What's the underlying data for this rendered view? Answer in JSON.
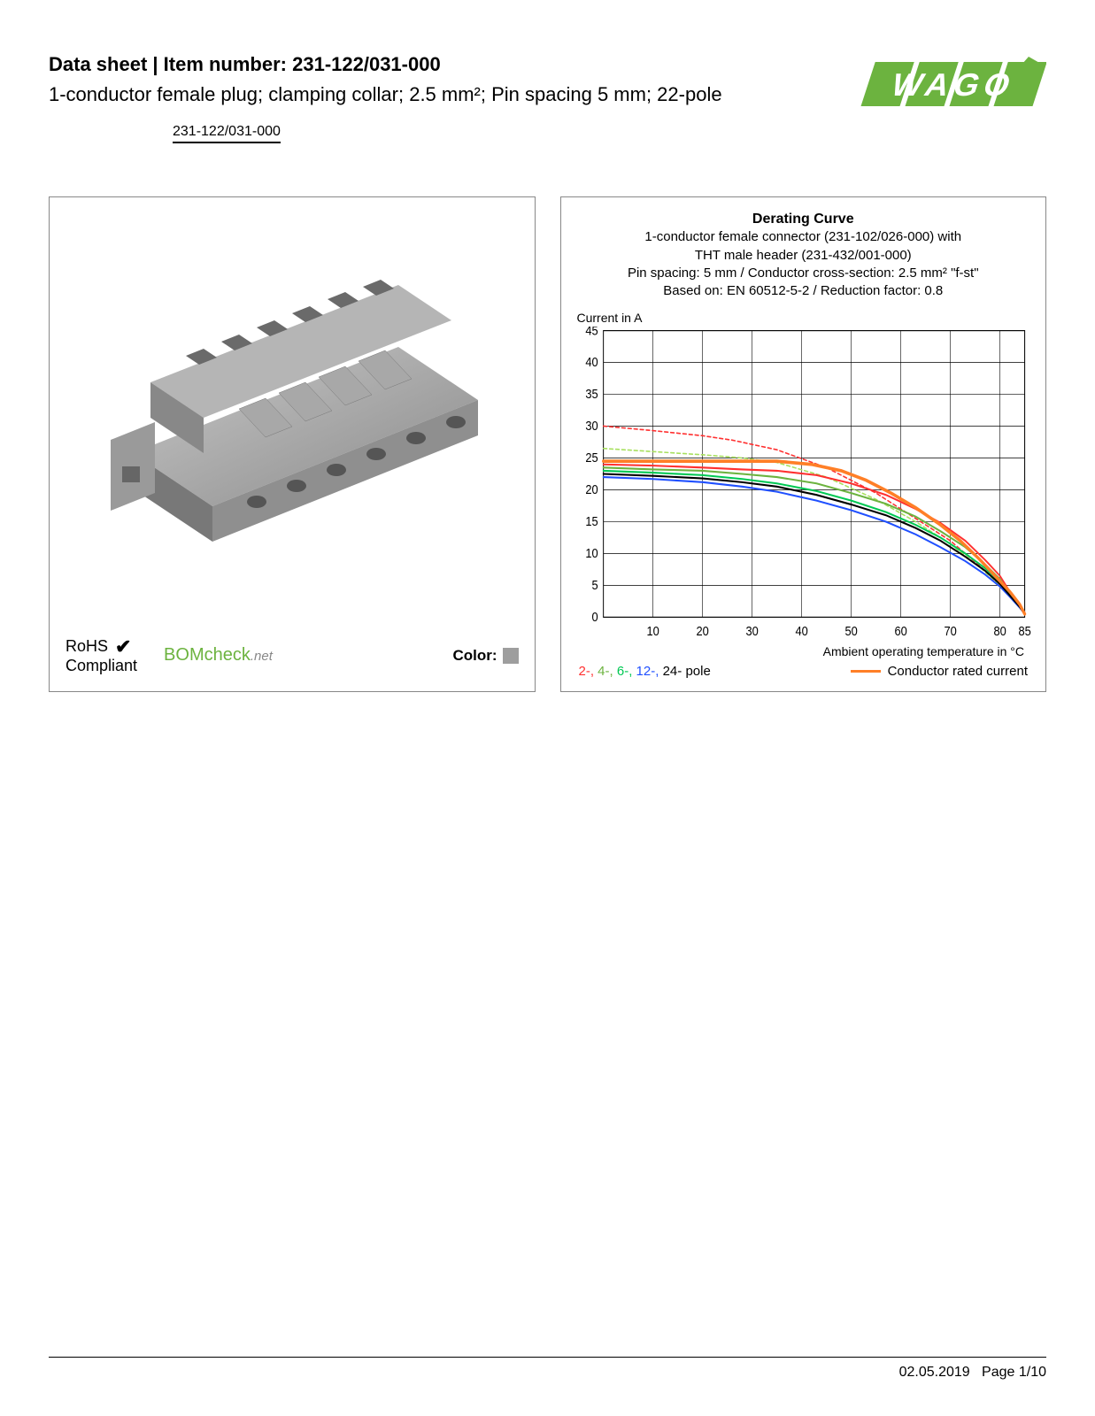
{
  "header": {
    "title_prefix": "Data sheet  |  Item number: ",
    "item_number": "231-122/031-000",
    "subtitle": "1-conductor female plug; clamping collar; 2.5 mm²; Pin spacing 5 mm; 22-pole",
    "link_text": "231-122/031-000"
  },
  "logo": {
    "text": "WAGO",
    "color": "#6cb33f"
  },
  "product_image": {
    "alt": "connector-plug",
    "body_color": "#9e9e9e",
    "shadow_color": "#707070"
  },
  "badges": {
    "rohs_line1": "RoHS",
    "rohs_line2": "Compliant",
    "bomcheck": "BOMcheck",
    "bomcheck_suffix": ".net",
    "color_label": "Color:",
    "color_swatch": "#9e9e9e"
  },
  "chart": {
    "title": "Derating Curve",
    "desc1": "1-conductor female connector (231-102/026-000) with",
    "desc2": "THT male header (231-432/001-000)",
    "desc3": "Pin spacing: 5 mm / Conductor cross-section: 2.5 mm² \"f-st\"",
    "desc4": "Based on: EN 60512-5-2 / Reduction factor: 0.8",
    "ylabel": "Current in A",
    "xlabel": "Ambient operating temperature in °C",
    "ylim": [
      0,
      45
    ],
    "ytick_step": 5,
    "yticks": [
      0,
      5,
      10,
      15,
      20,
      25,
      30,
      35,
      40,
      45
    ],
    "xlim": [
      0,
      85
    ],
    "xticks": [
      10,
      20,
      30,
      40,
      50,
      60,
      70,
      80,
      85
    ],
    "grid_color": "#000000",
    "grid_width": 0.6,
    "background_color": "#ffffff",
    "series": [
      {
        "name": "2-pole-dashed",
        "color": "#ff3030",
        "dash": "4 3",
        "width": 1.4,
        "points": [
          [
            0,
            30
          ],
          [
            10,
            29.3
          ],
          [
            20,
            28.5
          ],
          [
            26,
            27.8
          ],
          [
            35,
            26.3
          ],
          [
            45,
            23.5
          ],
          [
            55,
            19.5
          ],
          [
            63,
            15.5
          ],
          [
            70,
            12
          ],
          [
            76,
            8
          ],
          [
            80,
            5
          ],
          [
            83,
            2.5
          ],
          [
            85,
            0.5
          ]
        ]
      },
      {
        "name": "4-pole-dashed",
        "color": "#a8e05f",
        "dash": "4 3",
        "width": 1.4,
        "points": [
          [
            0,
            26.5
          ],
          [
            10,
            26
          ],
          [
            20,
            25.5
          ],
          [
            28,
            25
          ],
          [
            35,
            24.3
          ],
          [
            45,
            22
          ],
          [
            55,
            18.5
          ],
          [
            63,
            15
          ],
          [
            70,
            11.5
          ],
          [
            76,
            7.8
          ],
          [
            80,
            5
          ],
          [
            83,
            2.5
          ],
          [
            85,
            0.5
          ]
        ]
      },
      {
        "name": "2-pole",
        "color": "#ff3030",
        "dash": "",
        "width": 1.8,
        "points": [
          [
            0,
            24
          ],
          [
            10,
            23.8
          ],
          [
            20,
            23.5
          ],
          [
            28,
            23.2
          ],
          [
            35,
            23
          ],
          [
            43,
            22.3
          ],
          [
            50,
            21
          ],
          [
            57,
            19.2
          ],
          [
            63,
            17
          ],
          [
            68,
            14.8
          ],
          [
            73,
            12
          ],
          [
            77,
            9
          ],
          [
            80,
            6.5
          ],
          [
            82,
            4
          ],
          [
            84,
            2
          ],
          [
            85,
            0.5
          ]
        ]
      },
      {
        "name": "4-pole",
        "color": "#6cb33f",
        "dash": "",
        "width": 1.8,
        "points": [
          [
            0,
            23.5
          ],
          [
            10,
            23.2
          ],
          [
            20,
            23
          ],
          [
            28,
            22.5
          ],
          [
            35,
            22
          ],
          [
            43,
            21
          ],
          [
            50,
            19.5
          ],
          [
            57,
            17.8
          ],
          [
            63,
            15.8
          ],
          [
            68,
            13.5
          ],
          [
            73,
            11
          ],
          [
            77,
            8.3
          ],
          [
            80,
            6
          ],
          [
            82,
            3.8
          ],
          [
            84,
            1.8
          ],
          [
            85,
            0.5
          ]
        ]
      },
      {
        "name": "6-pole",
        "color": "#00c853",
        "dash": "",
        "width": 1.8,
        "points": [
          [
            0,
            23
          ],
          [
            10,
            22.7
          ],
          [
            20,
            22.3
          ],
          [
            28,
            21.7
          ],
          [
            35,
            21
          ],
          [
            43,
            19.8
          ],
          [
            50,
            18.3
          ],
          [
            57,
            16.5
          ],
          [
            63,
            14.5
          ],
          [
            68,
            12.5
          ],
          [
            73,
            10
          ],
          [
            77,
            7.7
          ],
          [
            80,
            5.5
          ],
          [
            82,
            3.5
          ],
          [
            84,
            1.7
          ],
          [
            85,
            0.5
          ]
        ]
      },
      {
        "name": "12-pole",
        "color": "#2050ff",
        "dash": "",
        "width": 1.8,
        "points": [
          [
            0,
            22
          ],
          [
            10,
            21.7
          ],
          [
            20,
            21.2
          ],
          [
            28,
            20.5
          ],
          [
            35,
            19.7
          ],
          [
            43,
            18.3
          ],
          [
            50,
            16.8
          ],
          [
            57,
            15
          ],
          [
            63,
            13
          ],
          [
            68,
            11
          ],
          [
            73,
            8.8
          ],
          [
            77,
            6.7
          ],
          [
            80,
            4.8
          ],
          [
            82,
            3.2
          ],
          [
            84,
            1.5
          ],
          [
            85,
            0.5
          ]
        ]
      },
      {
        "name": "24-pole",
        "color": "#000000",
        "dash": "",
        "width": 1.8,
        "points": [
          [
            0,
            22.5
          ],
          [
            10,
            22.2
          ],
          [
            20,
            21.8
          ],
          [
            28,
            21.2
          ],
          [
            35,
            20.5
          ],
          [
            43,
            19.2
          ],
          [
            50,
            17.7
          ],
          [
            57,
            16
          ],
          [
            63,
            14
          ],
          [
            68,
            12
          ],
          [
            73,
            9.5
          ],
          [
            77,
            7.3
          ],
          [
            80,
            5.2
          ],
          [
            82,
            3.4
          ],
          [
            84,
            1.6
          ],
          [
            85,
            0.5
          ]
        ]
      },
      {
        "name": "conductor-rated",
        "color": "#ff7f27",
        "dash": "",
        "width": 3.2,
        "points": [
          [
            0,
            24.5
          ],
          [
            10,
            24.5
          ],
          [
            20,
            24.5
          ],
          [
            28,
            24.5
          ],
          [
            35,
            24.5
          ],
          [
            42,
            24
          ],
          [
            48,
            23
          ],
          [
            53,
            21.5
          ],
          [
            58,
            19.5
          ],
          [
            63,
            17.2
          ],
          [
            68,
            14.5
          ],
          [
            72,
            12
          ],
          [
            76,
            9
          ],
          [
            79,
            6.5
          ],
          [
            82,
            4
          ],
          [
            84,
            2
          ],
          [
            85,
            0.5
          ]
        ]
      }
    ],
    "legend_poles": [
      {
        "label": "2-,",
        "color": "#ff3030"
      },
      {
        "label": " 4-,",
        "color": "#6cb33f"
      },
      {
        "label": " 6-,",
        "color": "#00c853"
      },
      {
        "label": " 12-,",
        "color": "#2050ff"
      },
      {
        "label": " 24-",
        "color": "#000000"
      }
    ],
    "legend_poles_suffix": "pole",
    "legend_conductor": "Conductor rated current"
  },
  "footer": {
    "date": "02.05.2019",
    "page": "Page 1/10"
  }
}
